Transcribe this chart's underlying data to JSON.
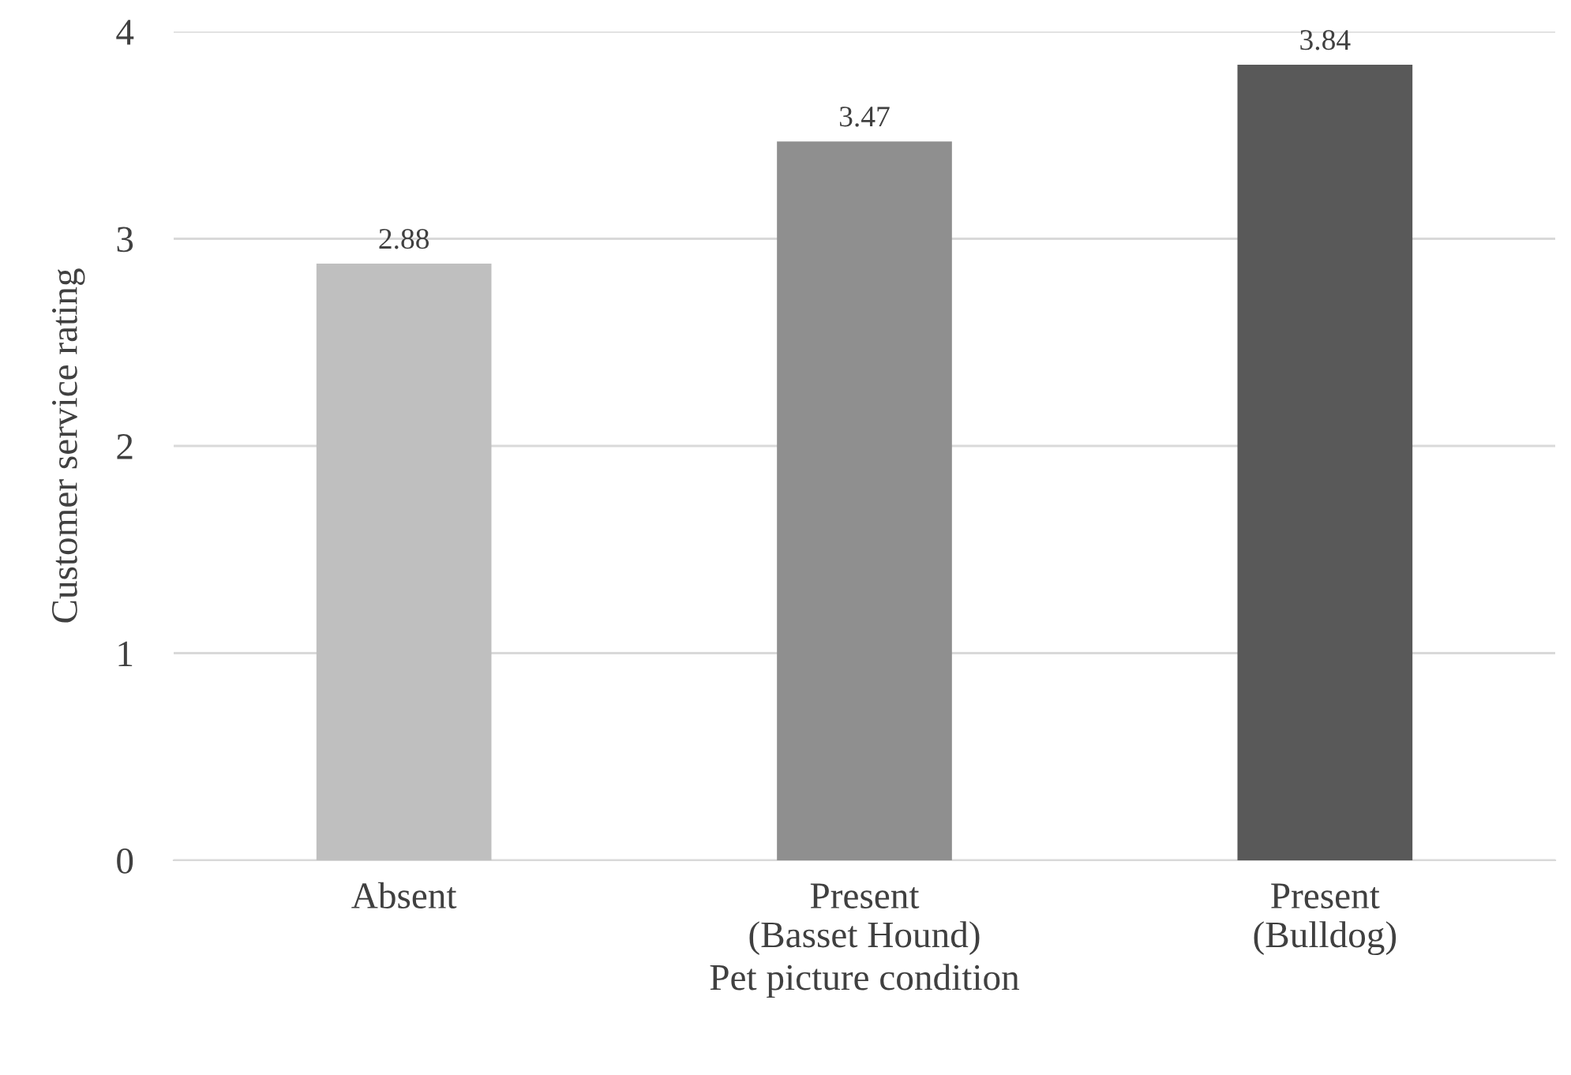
{
  "chart_data": {
    "type": "bar",
    "xlabel": "Pet picture condition",
    "ylabel": "Customer service rating",
    "categories": [
      "Absent",
      "Present\n(Basset Hound)",
      "Present\n(Bulldog)"
    ],
    "values": [
      2.88,
      3.47,
      3.84
    ],
    "colors": [
      "#bfbfbf",
      "#8f8f8f",
      "#595959"
    ],
    "ylim": [
      0,
      4
    ],
    "yticks": [
      0,
      1,
      2,
      3,
      4
    ],
    "grid": "y",
    "data_labels": true
  }
}
